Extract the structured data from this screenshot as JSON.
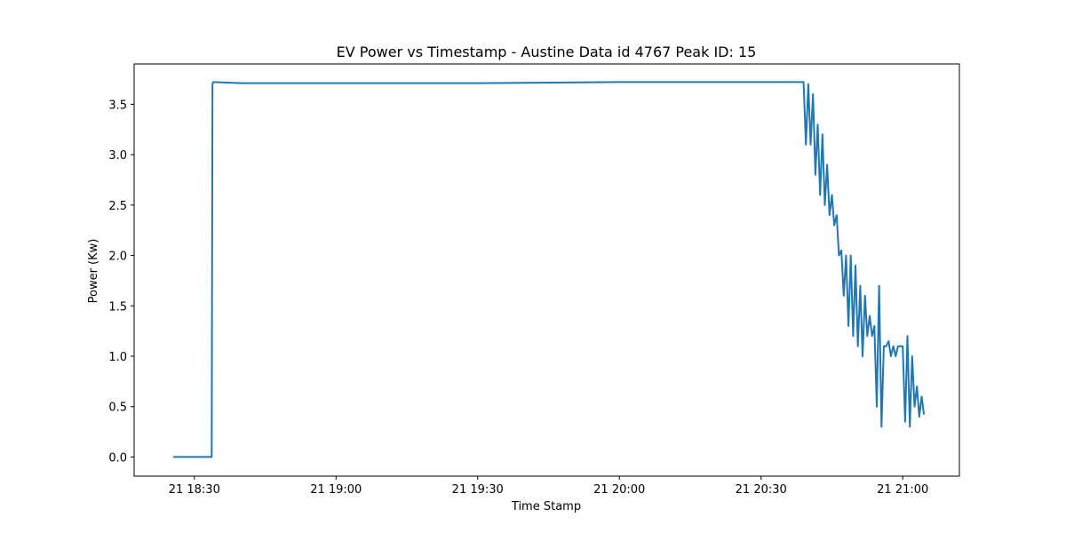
{
  "chart_data": {
    "type": "line",
    "title": "EV Power vs Timestamp - Austine Data id 4767 Peak ID: 15",
    "xlabel": "Time Stamp",
    "ylabel": "Power (Kw)",
    "x_ticks": [
      {
        "value": "18:30",
        "label": "21 18:30"
      },
      {
        "value": "19:00",
        "label": "21 19:00"
      },
      {
        "value": "19:30",
        "label": "21 19:30"
      },
      {
        "value": "20:00",
        "label": "21 20:00"
      },
      {
        "value": "20:30",
        "label": "21 20:30"
      },
      {
        "value": "21:00",
        "label": "21 21:00"
      }
    ],
    "y_ticks": [
      {
        "value": 0.0,
        "label": "0.0"
      },
      {
        "value": 0.5,
        "label": "0.5"
      },
      {
        "value": 1.0,
        "label": "1.0"
      },
      {
        "value": 1.5,
        "label": "1.5"
      },
      {
        "value": 2.0,
        "label": "2.0"
      },
      {
        "value": 2.5,
        "label": "2.5"
      },
      {
        "value": 3.0,
        "label": "3.0"
      },
      {
        "value": 3.5,
        "label": "3.5"
      }
    ],
    "xlim": [
      "18:17:15",
      "21:12:00"
    ],
    "ylim": [
      -0.19,
      3.9
    ],
    "grid": false,
    "color": "#1f77b4",
    "series": [
      {
        "x": [
          "18:25:30",
          "18:33:40",
          "18:33:50",
          "18:34:00",
          "18:34:10",
          "18:40:00",
          "19:00:00",
          "19:30:00",
          "20:00:00",
          "20:30:00",
          "20:39:00",
          "20:39:30",
          "20:40:00",
          "20:40:30",
          "20:41:00",
          "20:41:30",
          "20:42:00",
          "20:42:30",
          "20:43:00",
          "20:43:30",
          "20:44:00",
          "20:44:30",
          "20:45:00",
          "20:45:30",
          "20:46:00",
          "20:46:30",
          "20:47:00",
          "20:47:30",
          "20:48:00",
          "20:48:30",
          "20:49:00",
          "20:49:30",
          "20:50:00",
          "20:50:30",
          "20:51:00",
          "20:51:30",
          "20:52:00",
          "20:52:30",
          "20:53:00",
          "20:53:30",
          "20:54:00",
          "20:54:30",
          "20:55:00",
          "20:55:30",
          "20:56:00",
          "20:56:30",
          "20:57:00",
          "20:57:30",
          "20:58:00",
          "20:58:30",
          "20:59:00",
          "20:59:30",
          "21:00:00",
          "21:00:30",
          "21:01:00",
          "21:01:30",
          "21:02:00",
          "21:02:30",
          "21:03:00",
          "21:03:30",
          "21:04:00",
          "21:04:30"
        ],
        "y": [
          0.0,
          0.0,
          3.7,
          3.72,
          3.72,
          3.71,
          3.71,
          3.71,
          3.72,
          3.72,
          3.72,
          3.1,
          3.7,
          3.1,
          3.6,
          2.8,
          3.3,
          2.6,
          3.2,
          2.5,
          2.9,
          2.4,
          2.6,
          2.3,
          2.4,
          2.0,
          2.05,
          1.6,
          2.0,
          1.3,
          2.0,
          1.2,
          1.9,
          1.1,
          1.7,
          1.0,
          1.6,
          1.2,
          1.4,
          1.2,
          1.3,
          0.5,
          1.7,
          0.3,
          1.1,
          1.1,
          1.15,
          1.0,
          1.1,
          1.0,
          1.1,
          1.1,
          1.1,
          0.35,
          1.2,
          0.3,
          1.0,
          0.5,
          0.7,
          0.4,
          0.6,
          0.42
        ]
      }
    ]
  }
}
